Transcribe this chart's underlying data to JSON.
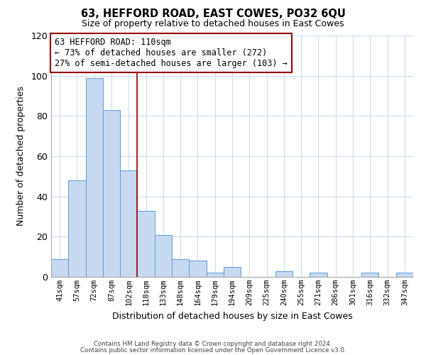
{
  "title": "63, HEFFORD ROAD, EAST COWES, PO32 6QU",
  "subtitle": "Size of property relative to detached houses in East Cowes",
  "xlabel": "Distribution of detached houses by size in East Cowes",
  "ylabel": "Number of detached properties",
  "bar_labels": [
    "41sqm",
    "57sqm",
    "72sqm",
    "87sqm",
    "102sqm",
    "118sqm",
    "133sqm",
    "148sqm",
    "164sqm",
    "179sqm",
    "194sqm",
    "209sqm",
    "225sqm",
    "240sqm",
    "255sqm",
    "271sqm",
    "286sqm",
    "301sqm",
    "316sqm",
    "332sqm",
    "347sqm"
  ],
  "bar_heights": [
    9,
    48,
    99,
    83,
    53,
    33,
    21,
    9,
    8,
    2,
    5,
    0,
    0,
    3,
    0,
    2,
    0,
    0,
    2,
    0,
    2
  ],
  "bar_color": "#c6d9f0",
  "bar_edge_color": "#5b9bd5",
  "vline_x": 4.5,
  "vline_color": "#990000",
  "ylim": [
    0,
    120
  ],
  "yticks": [
    0,
    20,
    40,
    60,
    80,
    100,
    120
  ],
  "annotation_title": "63 HEFFORD ROAD: 110sqm",
  "annotation_line1": "← 73% of detached houses are smaller (272)",
  "annotation_line2": "27% of semi-detached houses are larger (103) →",
  "annotation_box_color": "#ffffff",
  "annotation_box_edge": "#990000",
  "footnote1": "Contains HM Land Registry data © Crown copyright and database right 2024.",
  "footnote2": "Contains public sector information licensed under the Open Government Licence v3.0.",
  "background_color": "#ffffff",
  "grid_color": "#ccdcee"
}
